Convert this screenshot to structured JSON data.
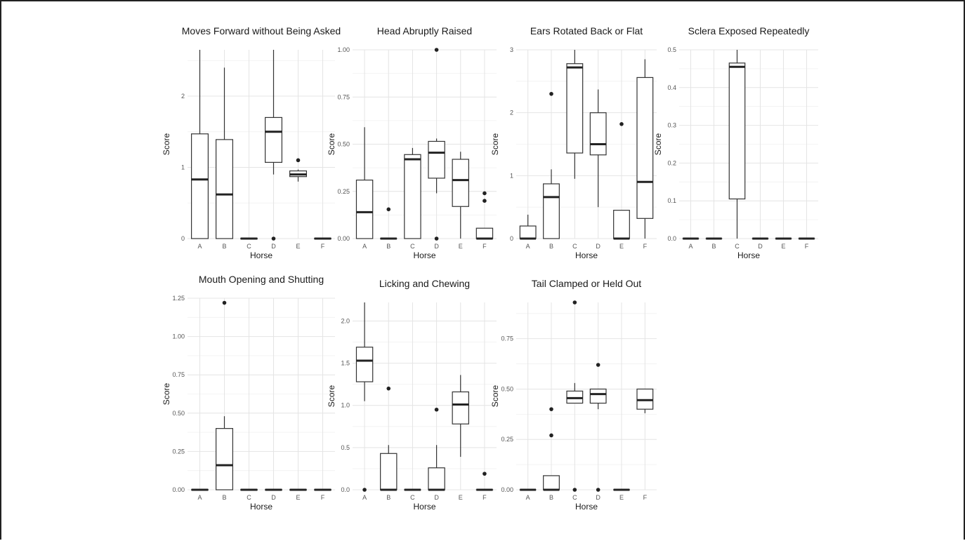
{
  "chart_data": [
    {
      "type": "box",
      "title": "Moves Forward without Being Asked",
      "xlabel": "Horse",
      "ylabel": "Score",
      "ylim": [
        0,
        2.65
      ],
      "yticks": [
        0,
        1,
        2
      ],
      "yticklabels": [
        "0",
        "1",
        "2"
      ],
      "categories": [
        "A",
        "B",
        "C",
        "D",
        "E",
        "F"
      ],
      "boxes": [
        {
          "min": 0,
          "q1": 0,
          "median": 0.83,
          "q3": 1.47,
          "max": 2.65,
          "outliers": []
        },
        {
          "min": 0,
          "q1": 0,
          "median": 0.62,
          "q3": 1.39,
          "max": 2.4,
          "outliers": []
        },
        {
          "min": 0,
          "q1": 0,
          "median": 0,
          "q3": 0,
          "max": 0,
          "outliers": []
        },
        {
          "min": 0.9,
          "q1": 1.07,
          "median": 1.5,
          "q3": 1.7,
          "max": 2.65,
          "outliers": [
            0
          ]
        },
        {
          "min": 0.8,
          "q1": 0.87,
          "median": 0.9,
          "q3": 0.95,
          "max": 0.97,
          "outliers": [
            1.1
          ]
        },
        {
          "min": 0,
          "q1": 0,
          "median": 0,
          "q3": 0,
          "max": 0,
          "outliers": []
        }
      ]
    },
    {
      "type": "box",
      "title": "Head Abruptly Raised",
      "xlabel": "Horse",
      "ylabel": "Score",
      "ylim": [
        0,
        1.0
      ],
      "yticks": [
        0,
        0.25,
        0.5,
        0.75,
        1.0
      ],
      "yticklabels": [
        "0.00",
        "0.25",
        "0.50",
        "0.75",
        "1.00"
      ],
      "categories": [
        "A",
        "B",
        "C",
        "D",
        "E",
        "F"
      ],
      "boxes": [
        {
          "min": 0,
          "q1": 0,
          "median": 0.14,
          "q3": 0.31,
          "max": 0.59,
          "outliers": []
        },
        {
          "min": 0,
          "q1": 0,
          "median": 0,
          "q3": 0,
          "max": 0,
          "outliers": [
            0.155
          ]
        },
        {
          "min": 0,
          "q1": 0,
          "median": 0.42,
          "q3": 0.445,
          "max": 0.48,
          "outliers": []
        },
        {
          "min": 0.24,
          "q1": 0.32,
          "median": 0.455,
          "q3": 0.515,
          "max": 0.53,
          "outliers": [
            1.0,
            0
          ]
        },
        {
          "min": 0,
          "q1": 0.17,
          "median": 0.31,
          "q3": 0.42,
          "max": 0.46,
          "outliers": []
        },
        {
          "min": 0,
          "q1": 0,
          "median": 0,
          "q3": 0.055,
          "max": 0.055,
          "outliers": [
            0.24,
            0.2
          ]
        }
      ]
    },
    {
      "type": "box",
      "title": "Ears Rotated Back or Flat",
      "xlabel": "Horse",
      "ylabel": "Score",
      "ylim": [
        0,
        3.0
      ],
      "yticks": [
        0,
        1,
        2,
        3
      ],
      "yticklabels": [
        "0",
        "1",
        "2",
        "3"
      ],
      "categories": [
        "A",
        "B",
        "C",
        "D",
        "E",
        "F"
      ],
      "boxes": [
        {
          "min": 0,
          "q1": 0,
          "median": 0,
          "q3": 0.2,
          "max": 0.38,
          "outliers": []
        },
        {
          "min": 0,
          "q1": 0,
          "median": 0.66,
          "q3": 0.87,
          "max": 1.1,
          "outliers": [
            2.3
          ]
        },
        {
          "min": 0.95,
          "q1": 1.36,
          "median": 2.72,
          "q3": 2.78,
          "max": 3.0,
          "outliers": []
        },
        {
          "min": 0.5,
          "q1": 1.33,
          "median": 1.5,
          "q3": 2.0,
          "max": 2.37,
          "outliers": []
        },
        {
          "min": 0,
          "q1": 0,
          "median": 0,
          "q3": 0.45,
          "max": 0.45,
          "outliers": [
            1.82
          ]
        },
        {
          "min": 0,
          "q1": 0.32,
          "median": 0.9,
          "q3": 2.56,
          "max": 2.85,
          "outliers": []
        }
      ]
    },
    {
      "type": "box",
      "title": "Sclera Exposed Repeatedly",
      "xlabel": "Horse",
      "ylabel": "Score",
      "ylim": [
        0,
        0.5
      ],
      "yticks": [
        0,
        0.1,
        0.2,
        0.3,
        0.4,
        0.5
      ],
      "yticklabels": [
        "0.0",
        "0.1",
        "0.2",
        "0.3",
        "0.4",
        "0.5"
      ],
      "categories": [
        "A",
        "B",
        "C",
        "D",
        "E",
        "F"
      ],
      "boxes": [
        {
          "min": 0,
          "q1": 0,
          "median": 0,
          "q3": 0,
          "max": 0,
          "outliers": []
        },
        {
          "min": 0,
          "q1": 0,
          "median": 0,
          "q3": 0,
          "max": 0,
          "outliers": []
        },
        {
          "min": 0,
          "q1": 0.105,
          "median": 0.455,
          "q3": 0.465,
          "max": 0.5,
          "outliers": []
        },
        {
          "min": 0,
          "q1": 0,
          "median": 0,
          "q3": 0,
          "max": 0,
          "outliers": []
        },
        {
          "min": 0,
          "q1": 0,
          "median": 0,
          "q3": 0,
          "max": 0,
          "outliers": []
        },
        {
          "min": 0,
          "q1": 0,
          "median": 0,
          "q3": 0,
          "max": 0,
          "outliers": []
        }
      ]
    },
    {
      "type": "box",
      "title": "Mouth Opening and Shutting",
      "xlabel": "Horse",
      "ylabel": "Score",
      "ylim": [
        0,
        1.25
      ],
      "yticks": [
        0,
        0.25,
        0.5,
        0.75,
        1.0,
        1.25
      ],
      "yticklabels": [
        "0.00",
        "0.25",
        "0.50",
        "0.75",
        "1.00",
        "1.25"
      ],
      "categories": [
        "A",
        "B",
        "C",
        "D",
        "E",
        "F"
      ],
      "boxes": [
        {
          "min": 0,
          "q1": 0,
          "median": 0,
          "q3": 0,
          "max": 0,
          "outliers": []
        },
        {
          "min": 0,
          "q1": 0,
          "median": 0.16,
          "q3": 0.4,
          "max": 0.48,
          "outliers": [
            1.22
          ]
        },
        {
          "min": 0,
          "q1": 0,
          "median": 0,
          "q3": 0,
          "max": 0,
          "outliers": []
        },
        {
          "min": 0,
          "q1": 0,
          "median": 0,
          "q3": 0,
          "max": 0,
          "outliers": []
        },
        {
          "min": 0,
          "q1": 0,
          "median": 0,
          "q3": 0,
          "max": 0,
          "outliers": []
        },
        {
          "min": 0,
          "q1": 0,
          "median": 0,
          "q3": 0,
          "max": 0,
          "outliers": []
        }
      ]
    },
    {
      "type": "box",
      "title": "Licking and Chewing",
      "xlabel": "Horse",
      "ylabel": "Score",
      "ylim": [
        0,
        2.22
      ],
      "yticks": [
        0,
        0.5,
        1.0,
        1.5,
        2.0
      ],
      "yticklabels": [
        "0.0",
        "0.5",
        "1.0",
        "1.5",
        "2.0"
      ],
      "categories": [
        "A",
        "B",
        "C",
        "D",
        "E",
        "F"
      ],
      "boxes": [
        {
          "min": 1.05,
          "q1": 1.28,
          "median": 1.53,
          "q3": 1.69,
          "max": 2.22,
          "outliers": [
            0
          ]
        },
        {
          "min": 0,
          "q1": 0,
          "median": 0,
          "q3": 0.43,
          "max": 0.53,
          "outliers": [
            1.2
          ]
        },
        {
          "min": 0,
          "q1": 0,
          "median": 0,
          "q3": 0,
          "max": 0,
          "outliers": []
        },
        {
          "min": 0,
          "q1": 0,
          "median": 0,
          "q3": 0.26,
          "max": 0.53,
          "outliers": [
            0.95
          ]
        },
        {
          "min": 0.39,
          "q1": 0.78,
          "median": 1.01,
          "q3": 1.16,
          "max": 1.36,
          "outliers": []
        },
        {
          "min": 0,
          "q1": 0,
          "median": 0,
          "q3": 0,
          "max": 0,
          "outliers": [
            0.19
          ]
        }
      ]
    },
    {
      "type": "box",
      "title": "Tail Clamped or Held Out",
      "xlabel": "Horse",
      "ylabel": "Score",
      "ylim": [
        0,
        0.93
      ],
      "yticks": [
        0,
        0.25,
        0.5,
        0.75
      ],
      "yticklabels": [
        "0.00",
        "0.25",
        "0.50",
        "0.75"
      ],
      "categories": [
        "A",
        "B",
        "C",
        "D",
        "E",
        "F"
      ],
      "boxes": [
        {
          "min": 0,
          "q1": 0,
          "median": 0,
          "q3": 0,
          "max": 0,
          "outliers": []
        },
        {
          "min": 0,
          "q1": 0,
          "median": 0,
          "q3": 0.07,
          "max": 0.07,
          "outliers": [
            0.4,
            0.27
          ]
        },
        {
          "min": 0.43,
          "q1": 0.43,
          "median": 0.455,
          "q3": 0.49,
          "max": 0.53,
          "outliers": [
            0.93,
            0
          ]
        },
        {
          "min": 0.4,
          "q1": 0.43,
          "median": 0.475,
          "q3": 0.5,
          "max": 0.5,
          "outliers": [
            0.62,
            0
          ]
        },
        {
          "min": 0,
          "q1": 0,
          "median": 0,
          "q3": 0,
          "max": 0,
          "outliers": []
        },
        {
          "min": 0.38,
          "q1": 0.4,
          "median": 0.445,
          "q3": 0.5,
          "max": 0.5,
          "outliers": []
        }
      ]
    }
  ]
}
